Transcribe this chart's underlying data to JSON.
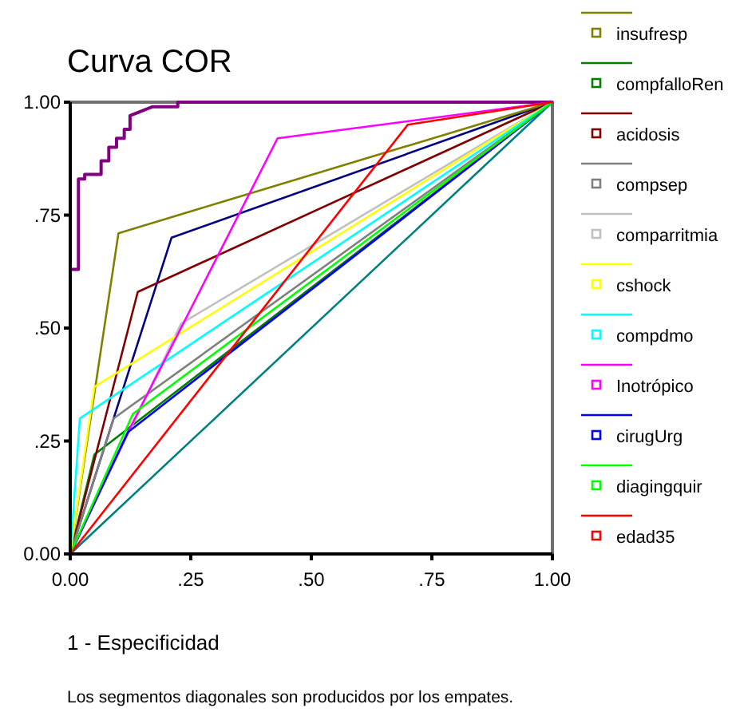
{
  "chart_data": {
    "type": "line",
    "title": "Curva COR",
    "xlabel": "1 - Especificidad",
    "annotations": [
      "Los segmentos diagonales son producidos por los empates."
    ],
    "xlim": [
      0,
      1
    ],
    "ylim": [
      0,
      1
    ],
    "xticks": [
      {
        "value": 0,
        "label": "0.00"
      },
      {
        "value": 0.25,
        "label": ".25"
      },
      {
        "value": 0.5,
        "label": ".50"
      },
      {
        "value": 0.75,
        "label": ".75"
      },
      {
        "value": 1,
        "label": "1.00"
      }
    ],
    "yticks": [
      {
        "value": 0,
        "label": "0.00"
      },
      {
        "value": 0.25,
        "label": ".25"
      },
      {
        "value": 0.5,
        "label": ".50"
      },
      {
        "value": 0.75,
        "label": ".75"
      },
      {
        "value": 1,
        "label": "1.00"
      }
    ],
    "grid": false,
    "legend": "right",
    "series": [
      {
        "color": "#008080",
        "x": [
          0,
          1
        ],
        "values": [
          0,
          1
        ]
      },
      {
        "color": "#800080",
        "x": [
          0,
          0,
          0.017,
          0.017,
          0.03,
          0.03,
          0.064,
          0.064,
          0.08,
          0.08,
          0.096,
          0.096,
          0.112,
          0.112,
          0.124,
          0.124,
          0.171,
          0.223,
          0.223,
          1
        ],
        "values": [
          0,
          0.63,
          0.63,
          0.83,
          0.83,
          0.84,
          0.84,
          0.87,
          0.87,
          0.9,
          0.9,
          0.92,
          0.92,
          0.94,
          0.94,
          0.97,
          0.99,
          0.99,
          1,
          1
        ]
      },
      {
        "color": "#000080",
        "x": [
          0,
          0.21,
          1
        ],
        "values": [
          0,
          0.7,
          1
        ]
      },
      {
        "name": "insufresp",
        "color": "#808000",
        "x": [
          0,
          0.1,
          1
        ],
        "values": [
          0,
          0.71,
          1
        ]
      },
      {
        "name": "compfalloRen",
        "color": "#008000",
        "x": [
          0,
          0.05,
          1
        ],
        "values": [
          0,
          0.22,
          1
        ]
      },
      {
        "name": "acidosis",
        "color": "#800000",
        "x": [
          0,
          0.14,
          1
        ],
        "values": [
          0,
          0.58,
          1
        ]
      },
      {
        "name": "compsep",
        "color": "#808080",
        "x": [
          0,
          0.09,
          1
        ],
        "values": [
          0,
          0.3,
          1
        ]
      },
      {
        "name": "comparritmia",
        "color": "#c0c0c0",
        "x": [
          0,
          0.23,
          1
        ],
        "values": [
          0,
          0.51,
          1
        ]
      },
      {
        "name": "cshock",
        "color": "#ffff00",
        "x": [
          0,
          0.05,
          1
        ],
        "values": [
          0,
          0.37,
          1
        ]
      },
      {
        "name": "compdmo",
        "color": "#00ffff",
        "x": [
          0,
          0.02,
          1
        ],
        "values": [
          0,
          0.3,
          1
        ]
      },
      {
        "name": "Inotrópico",
        "color": "#ff00ff",
        "x": [
          0,
          0.12,
          0.43,
          1
        ],
        "values": [
          0,
          0.27,
          0.92,
          1
        ]
      },
      {
        "name": "cirugUrg",
        "color": "#0000ff",
        "x": [
          0,
          0.12,
          1
        ],
        "values": [
          0,
          0.27,
          1
        ]
      },
      {
        "name": "diagingquir",
        "color": "#00ff00",
        "x": [
          0,
          0.13,
          1
        ],
        "values": [
          0,
          0.31,
          1
        ]
      },
      {
        "name": "edad35",
        "color": "#ff0000",
        "x": [
          0,
          0.7,
          1
        ],
        "values": [
          0,
          0.95,
          1
        ]
      }
    ]
  }
}
